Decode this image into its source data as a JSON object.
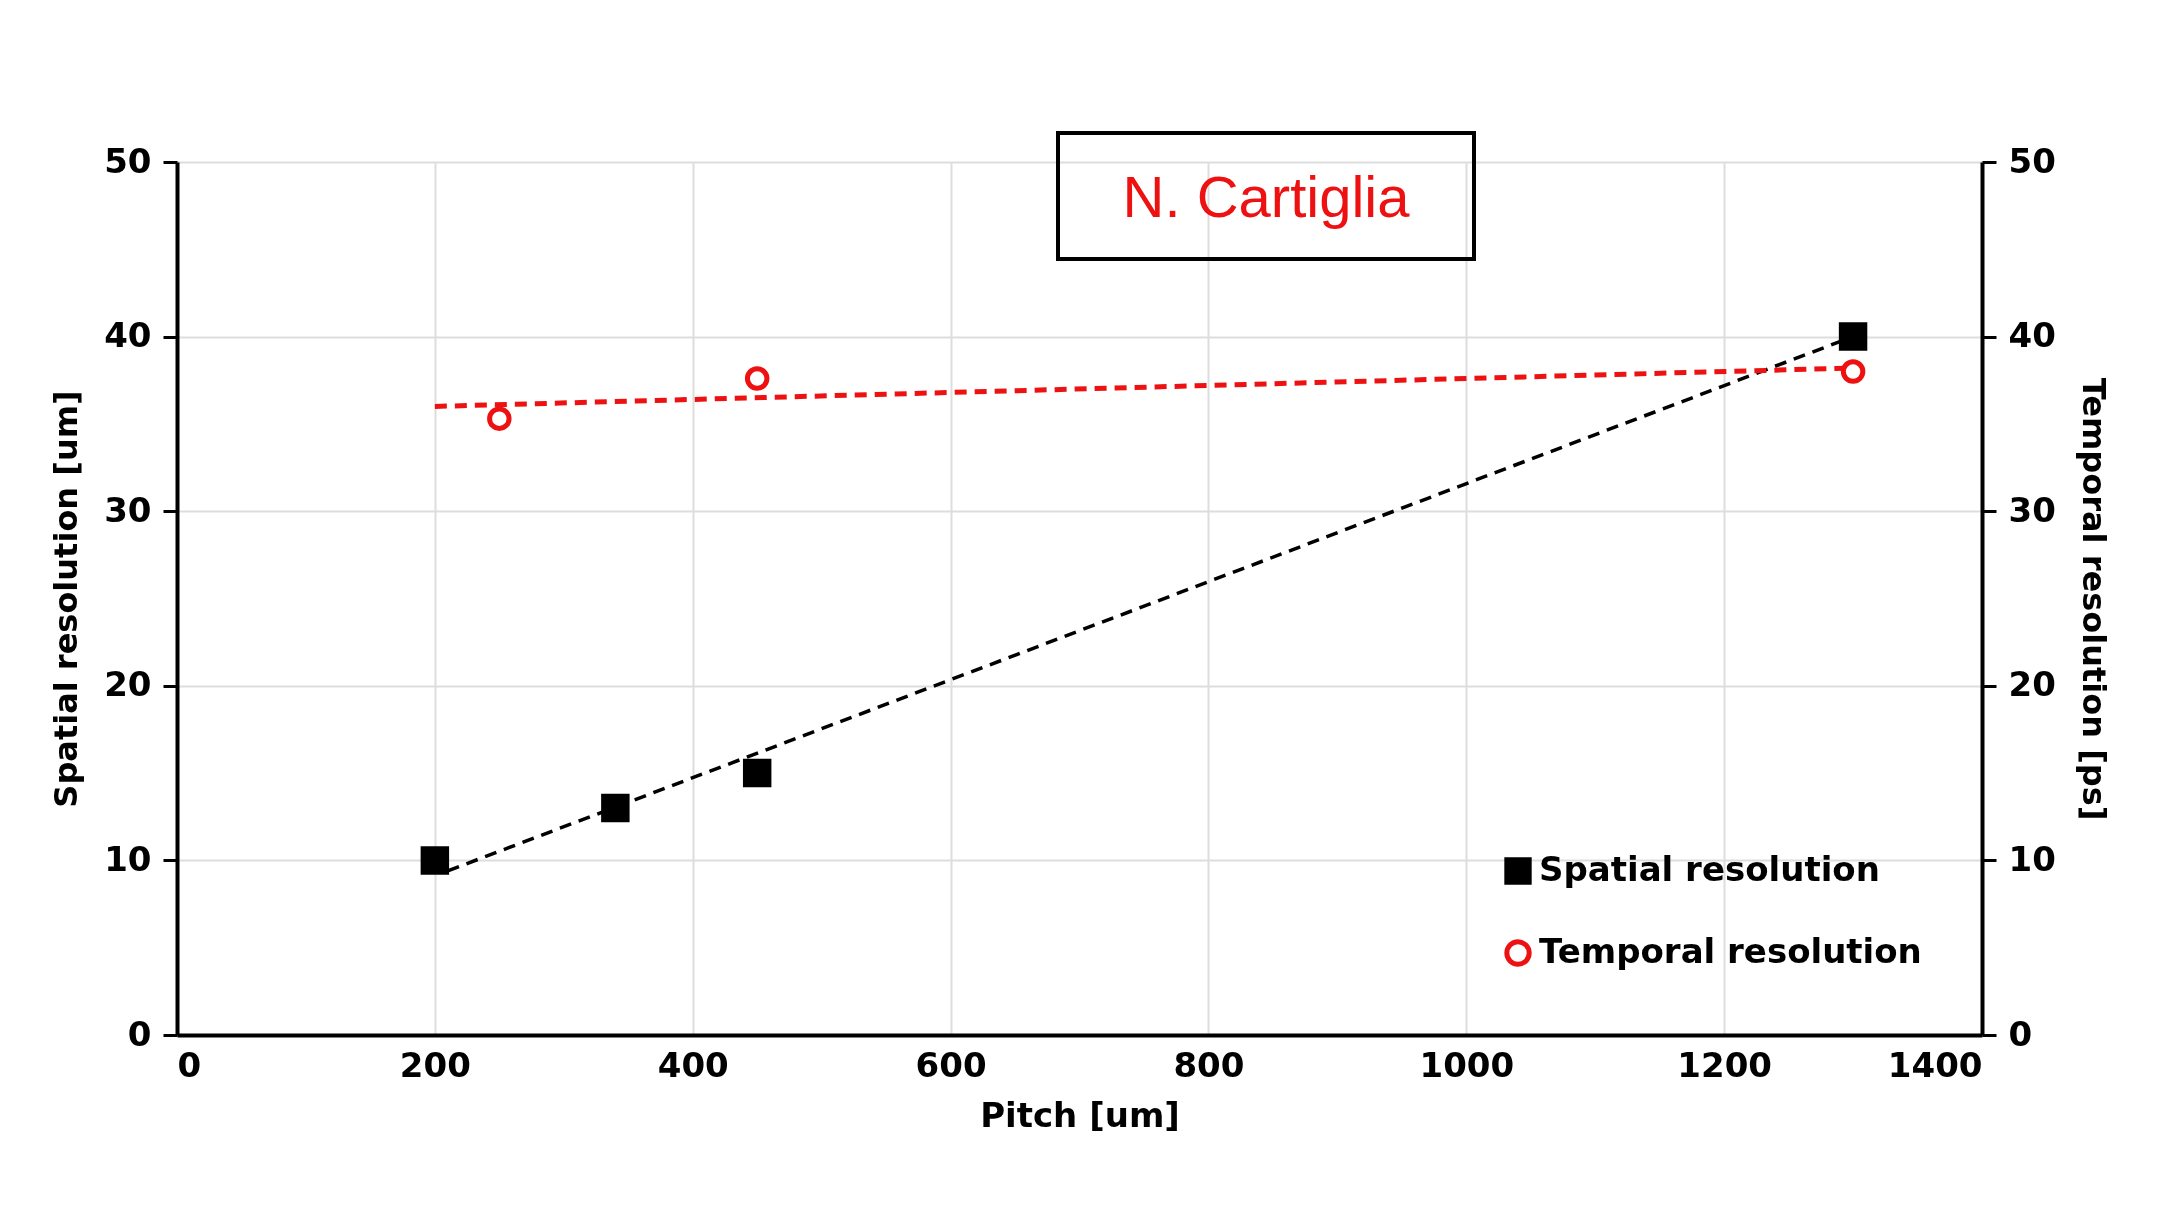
{
  "chart_data": {
    "type": "scatter",
    "xlabel": "Pitch [um]",
    "ylabel": "Spatial resolution [um]",
    "y2label": "Temporal resolution  [ps]",
    "xlim": [
      0,
      1400
    ],
    "xticks": [
      0,
      200,
      400,
      600,
      800,
      1000,
      1200,
      1400
    ],
    "ylim": [
      0,
      50
    ],
    "yticks": [
      0,
      10,
      20,
      30,
      40,
      50
    ],
    "y2lim": [
      0,
      50
    ],
    "y2ticks": [
      0,
      10,
      20,
      30,
      40,
      50
    ],
    "grid": true,
    "legend": "bottom right",
    "annotations": [
      "N. Cartiglia"
    ],
    "series": [
      {
        "name": "Spatial resolution",
        "color": "#000000",
        "marker": "square",
        "x": [
          200,
          340,
          450,
          1300
        ],
        "values": [
          10,
          13,
          15,
          40
        ]
      },
      {
        "name": "Temporal resolution",
        "color": "#ee1111",
        "marker": "circle",
        "axis": "y2",
        "x": [
          250,
          450,
          1300
        ],
        "values": [
          35.3,
          37.6,
          38.0
        ]
      },
      {
        "type": "line",
        "color": "#000000",
        "line_style": "dashed",
        "x": [
          210,
          1300
        ],
        "values": [
          9.4,
          40
        ]
      },
      {
        "type": "line",
        "color": "#ee1111",
        "line_style": "dashed",
        "axis": "y2",
        "x": [
          200,
          1300
        ],
        "values": [
          36.0,
          38.2
        ]
      }
    ]
  }
}
